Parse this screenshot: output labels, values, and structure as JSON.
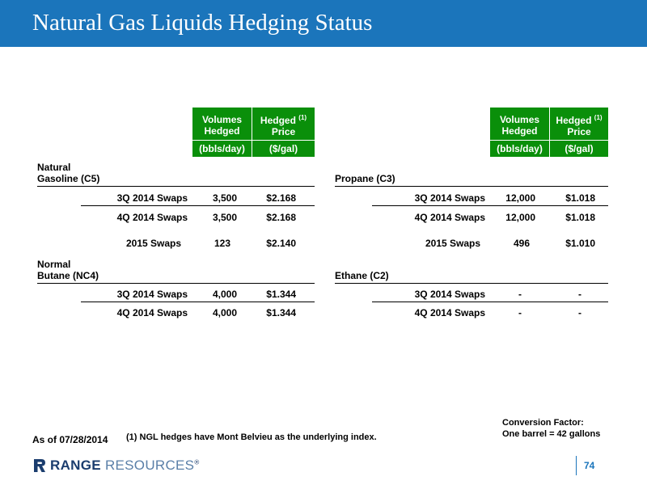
{
  "title": "Natural Gas Liquids Hedging Status",
  "columns": {
    "volumes": "Volumes Hedged",
    "volumes_line1": "Volumes",
    "volumes_line2": "Hedged",
    "price_line1": "Hedged",
    "price_sup": "(1)",
    "price_line2": "Price",
    "volumes_unit": "(bbls/day)",
    "price_unit": "($/gal)"
  },
  "left": {
    "sections": [
      {
        "name_line1": "Natural",
        "name_line2": "Gasoline (C5)",
        "rows": [
          {
            "label": "3Q 2014 Swaps",
            "volume": "3,500",
            "price": "$2.168"
          },
          {
            "label": "4Q 2014 Swaps",
            "volume": "3,500",
            "price": "$2.168"
          },
          {
            "label": "2015 Swaps",
            "volume": "123",
            "price": "$2.140"
          }
        ]
      },
      {
        "name_line1": "Normal",
        "name_line2": "Butane (NC4)",
        "rows": [
          {
            "label": "3Q 2014 Swaps",
            "volume": "4,000",
            "price": "$1.344"
          },
          {
            "label": "4Q 2014 Swaps",
            "volume": "4,000",
            "price": "$1.344"
          }
        ]
      }
    ]
  },
  "right": {
    "sections": [
      {
        "name": "Propane (C3)",
        "rows": [
          {
            "label": "3Q 2014 Swaps",
            "volume": "12,000",
            "price": "$1.018"
          },
          {
            "label": "4Q 2014 Swaps",
            "volume": "12,000",
            "price": "$1.018"
          },
          {
            "label": "2015 Swaps",
            "volume": "496",
            "price": "$1.010"
          }
        ]
      },
      {
        "name": "Ethane (C2)",
        "rows": [
          {
            "label": "3Q 2014 Swaps",
            "volume": "-",
            "price": "-"
          },
          {
            "label": "4Q 2014 Swaps",
            "volume": "-",
            "price": "-"
          }
        ]
      }
    ]
  },
  "footer": {
    "as_of": "As of 07/28/2014",
    "note": "(1) NGL hedges have Mont Belvieu as the underlying index.",
    "conversion_line1": "Conversion Factor:",
    "conversion_line2": "One barrel = 42 gallons",
    "logo_bold": "RANGE",
    "logo_light": "RESOURCES",
    "logo_mark": "®",
    "page_number": "74"
  },
  "colors": {
    "header": "#1b75bb",
    "table_header": "#0a8f0a",
    "logo": "#1b3d6e"
  }
}
